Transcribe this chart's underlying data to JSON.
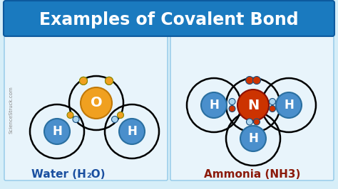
{
  "title": "Examples of Covalent Bond",
  "title_bg": "#1a7abf",
  "title_color": "#ffffff",
  "bg_color": "#d6eef8",
  "panel_bg": "#e8f4fb",
  "water_label": "Water (H",
  "water_label2": "O)",
  "ammonia_label": "Ammonia (NH3)",
  "water_label_color": "#1a4fa0",
  "ammonia_label_color": "#8b1a0a",
  "watermark": "ScienceStruck.com",
  "O_color": "#f0a020",
  "H_color": "#4a8fcc",
  "N_color": "#cc3300",
  "electron_O": "#f0a020",
  "electron_H_shared": "#aad0f0",
  "electron_N": "#cc3300"
}
